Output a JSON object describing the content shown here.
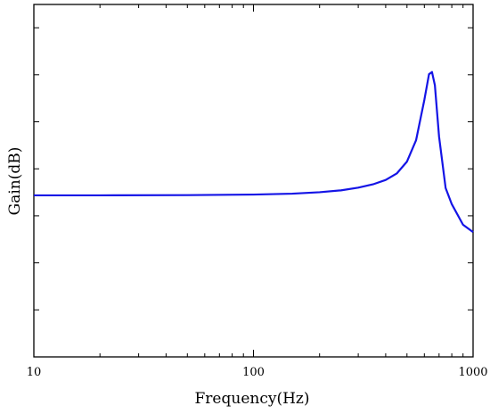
{
  "chart_data": {
    "type": "line",
    "title": "",
    "xlabel": "Frequency(Hz)",
    "ylabel": "Gain(dB)",
    "x_scale": "log",
    "xlim": [
      10,
      1000
    ],
    "x_ticks": [
      "10",
      "100",
      "1000"
    ],
    "y_tick_labels_shown": false,
    "grid": false,
    "legend": "none",
    "series": [
      {
        "color": "#1414e6",
        "x": [
          10,
          20,
          50,
          100,
          150,
          200,
          250,
          300,
          350,
          400,
          450,
          500,
          550,
          600,
          630,
          650,
          670,
          700,
          750,
          800,
          900,
          1000
        ],
        "y": [
          0.0,
          0.05,
          0.3,
          1.1,
          2.3,
          4.3,
          6.8,
          10.5,
          15.0,
          21.0,
          30.0,
          46.0,
          75.0,
          130.0,
          165.0,
          168.0,
          150.0,
          80.0,
          10.0,
          -12.0,
          -40.0,
          -50.0
        ]
      }
    ]
  }
}
